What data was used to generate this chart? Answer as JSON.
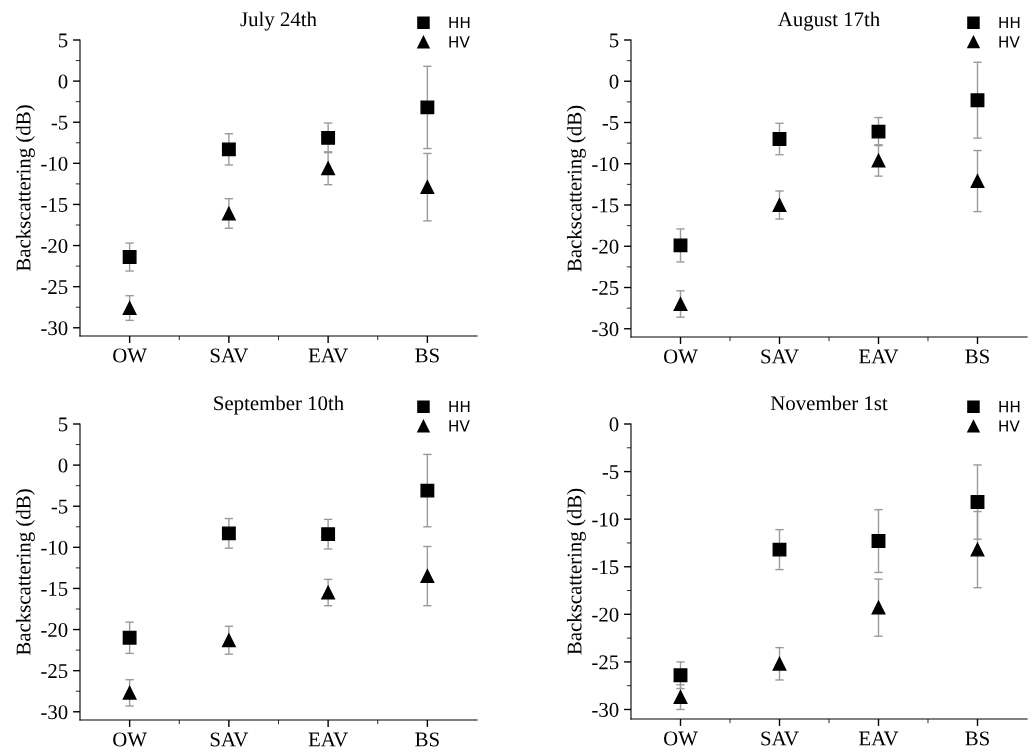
{
  "chart_data": [
    {
      "type": "scatter",
      "title": "July 24th",
      "ylabel": "Backscattering (dB)",
      "categories": [
        "OW",
        "SAV",
        "EAV",
        "BS"
      ],
      "ylim": [
        -31,
        5
      ],
      "yticks": [
        -30,
        -25,
        -20,
        -15,
        -10,
        -5,
        0,
        5
      ],
      "legend": "top right",
      "grid": false,
      "series": [
        {
          "name": "HH",
          "color": "#000000",
          "marker": "square",
          "values": [
            -21.4,
            -8.3,
            -6.9,
            -3.2
          ],
          "errors": [
            1.7,
            1.9,
            1.8,
            5.0
          ]
        },
        {
          "name": "HV",
          "color": "#000000",
          "marker": "triangle",
          "values": [
            -27.6,
            -16.1,
            -10.6,
            -12.9
          ],
          "errors": [
            1.5,
            1.8,
            2.0,
            4.1
          ]
        }
      ]
    },
    {
      "type": "scatter",
      "title": "August 17th",
      "ylabel": "Backscattering (dB)",
      "categories": [
        "OW",
        "SAV",
        "EAV",
        "BS"
      ],
      "ylim": [
        -31,
        5
      ],
      "yticks": [
        -30,
        -25,
        -20,
        -15,
        -10,
        -5,
        0,
        5
      ],
      "legend": "top right",
      "grid": false,
      "series": [
        {
          "name": "HH",
          "color": "#000000",
          "marker": "square",
          "values": [
            -19.9,
            -7.0,
            -6.1,
            -2.3
          ],
          "errors": [
            2.0,
            1.9,
            1.7,
            4.6
          ]
        },
        {
          "name": "HV",
          "color": "#000000",
          "marker": "triangle",
          "values": [
            -27.0,
            -15.0,
            -9.6,
            -12.1
          ],
          "errors": [
            1.6,
            1.7,
            1.9,
            3.7
          ]
        }
      ]
    },
    {
      "type": "scatter",
      "title": "September 10th",
      "ylabel": "Backscattering (dB)",
      "categories": [
        "OW",
        "SAV",
        "EAV",
        "BS"
      ],
      "ylim": [
        -31,
        5
      ],
      "yticks": [
        -30,
        -25,
        -20,
        -15,
        -10,
        -5,
        0,
        5
      ],
      "legend": "top right",
      "grid": false,
      "series": [
        {
          "name": "HH",
          "color": "#000000",
          "marker": "square",
          "values": [
            -21.0,
            -8.3,
            -8.4,
            -3.1
          ],
          "errors": [
            1.9,
            1.8,
            1.8,
            4.4
          ]
        },
        {
          "name": "HV",
          "color": "#000000",
          "marker": "triangle",
          "values": [
            -27.7,
            -21.3,
            -15.5,
            -13.5
          ],
          "errors": [
            1.6,
            1.7,
            1.6,
            3.6
          ]
        }
      ]
    },
    {
      "type": "scatter",
      "title": "November 1st",
      "ylabel": "Backscattering (dB)",
      "categories": [
        "OW",
        "SAV",
        "EAV",
        "BS"
      ],
      "ylim": [
        -31,
        0
      ],
      "yticks": [
        -30,
        -25,
        -20,
        -15,
        -10,
        -5,
        0
      ],
      "legend": "top right",
      "grid": false,
      "series": [
        {
          "name": "HH",
          "color": "#000000",
          "marker": "square",
          "values": [
            -26.4,
            -13.2,
            -12.3,
            -8.2
          ],
          "errors": [
            1.4,
            2.1,
            3.3,
            3.9
          ]
        },
        {
          "name": "HV",
          "color": "#000000",
          "marker": "triangle",
          "values": [
            -28.7,
            -25.2,
            -19.3,
            -13.2
          ],
          "errors": [
            1.3,
            1.7,
            3.0,
            4.0
          ]
        }
      ]
    }
  ]
}
